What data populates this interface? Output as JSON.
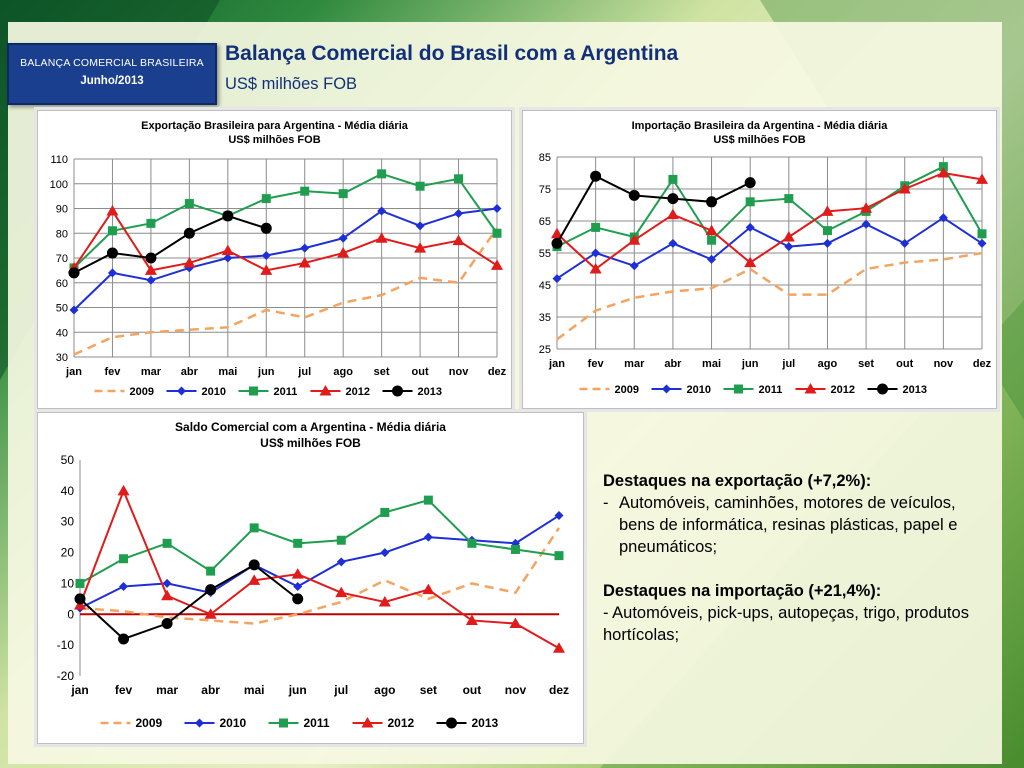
{
  "header": {
    "badge_line1": "BALANÇA COMERCIAL BRASILEIRA",
    "badge_line2": "Junho/2013",
    "title": "Balança Comercial do Brasil com a Argentina",
    "subtitle": "US$ milhões FOB"
  },
  "notes": {
    "export_head": "Destaques na exportação (+7,2%):",
    "export_dash": "-",
    "export_body": "Automóveis, caminhões, motores de veículos, bens de informática, resinas plásticas, papel e pneumáticos;",
    "import_head": "Destaques na importação (+21,4%):",
    "import_body": "- Automóveis, pick-ups, autopeças, trigo, produtos hortícolas;"
  },
  "colors": {
    "2009": "#f4a460",
    "2010": "#1f2fd6",
    "2011": "#1f9e4f",
    "2012": "#e11a1a",
    "2013": "#000000"
  },
  "chart_data": [
    {
      "type": "line",
      "title": "Exportação Brasileira para Argentina - Média diária",
      "subtitle": "US$ milhões FOB",
      "categories": [
        "jan",
        "fev",
        "mar",
        "abr",
        "mai",
        "jun",
        "jul",
        "ago",
        "set",
        "out",
        "nov",
        "dez"
      ],
      "ylim": [
        30,
        110
      ],
      "yticks": [
        30,
        40,
        50,
        60,
        70,
        80,
        90,
        100,
        110
      ],
      "grid": true,
      "legend": "bottom",
      "series": [
        {
          "name": "2009",
          "marker": "none",
          "dashed": true,
          "values": [
            31,
            38,
            40,
            41,
            42,
            49,
            46,
            52,
            55,
            62,
            60,
            82
          ]
        },
        {
          "name": "2010",
          "marker": "diamond",
          "values": [
            49,
            64,
            61,
            66,
            70,
            71,
            74,
            78,
            89,
            83,
            88,
            90
          ]
        },
        {
          "name": "2011",
          "marker": "square",
          "values": [
            66,
            81,
            84,
            92,
            87,
            94,
            97,
            96,
            104,
            99,
            102,
            80
          ]
        },
        {
          "name": "2012",
          "marker": "triangle",
          "values": [
            66,
            89,
            65,
            68,
            73,
            65,
            68,
            72,
            78,
            74,
            77,
            67
          ]
        },
        {
          "name": "2013",
          "marker": "circle",
          "values": [
            64,
            72,
            70,
            80,
            87,
            82,
            null,
            null,
            null,
            null,
            null,
            null
          ]
        }
      ]
    },
    {
      "type": "line",
      "title": "Importação Brasileira da Argentina - Média diária",
      "subtitle": "US$ milhões FOB",
      "categories": [
        "jan",
        "fev",
        "mar",
        "abr",
        "mai",
        "jun",
        "jul",
        "ago",
        "set",
        "out",
        "nov",
        "dez"
      ],
      "ylim": [
        25,
        85
      ],
      "yticks": [
        25,
        35,
        45,
        55,
        65,
        75,
        85
      ],
      "grid": true,
      "legend": "bottom",
      "series": [
        {
          "name": "2009",
          "marker": "none",
          "dashed": true,
          "values": [
            28,
            37,
            41,
            43,
            44,
            50,
            42,
            42,
            50,
            52,
            53,
            55
          ]
        },
        {
          "name": "2010",
          "marker": "diamond",
          "values": [
            47,
            55,
            51,
            58,
            53,
            63,
            57,
            58,
            64,
            58,
            66,
            58
          ]
        },
        {
          "name": "2011",
          "marker": "square",
          "values": [
            57,
            63,
            60,
            78,
            59,
            71,
            72,
            62,
            68,
            76,
            82,
            61
          ]
        },
        {
          "name": "2012",
          "marker": "triangle",
          "values": [
            61,
            50,
            59,
            67,
            62,
            52,
            60,
            68,
            69,
            75,
            80,
            78
          ]
        },
        {
          "name": "2013",
          "marker": "circle",
          "values": [
            58,
            79,
            73,
            72,
            71,
            77,
            null,
            null,
            null,
            null,
            null,
            null
          ]
        }
      ]
    },
    {
      "type": "line",
      "title": "Saldo Comercial com a Argentina - Média diária",
      "subtitle": "US$ milhões FOB",
      "categories": [
        "jan",
        "fev",
        "mar",
        "abr",
        "mai",
        "jun",
        "jul",
        "ago",
        "set",
        "out",
        "nov",
        "dez"
      ],
      "ylim": [
        -20,
        50
      ],
      "yticks": [
        -20,
        -10,
        0,
        10,
        20,
        30,
        40,
        50
      ],
      "grid": false,
      "zero_line": true,
      "legend": "bottom",
      "series": [
        {
          "name": "2009",
          "marker": "none",
          "dashed": true,
          "values": [
            2,
            1,
            -1,
            -2,
            -3,
            0,
            4,
            11,
            5,
            10,
            7,
            28
          ]
        },
        {
          "name": "2010",
          "marker": "diamond",
          "values": [
            2,
            9,
            10,
            7,
            16,
            9,
            17,
            20,
            25,
            24,
            23,
            32
          ]
        },
        {
          "name": "2011",
          "marker": "square",
          "values": [
            10,
            18,
            23,
            14,
            28,
            23,
            24,
            33,
            37,
            23,
            21,
            19
          ]
        },
        {
          "name": "2012",
          "marker": "triangle",
          "values": [
            3,
            40,
            6,
            0,
            11,
            13,
            7,
            4,
            8,
            -2,
            -3,
            -11
          ]
        },
        {
          "name": "2013",
          "marker": "circle",
          "values": [
            5,
            -8,
            -3,
            8,
            16,
            5,
            null,
            null,
            null,
            null,
            null,
            null
          ]
        }
      ]
    }
  ]
}
